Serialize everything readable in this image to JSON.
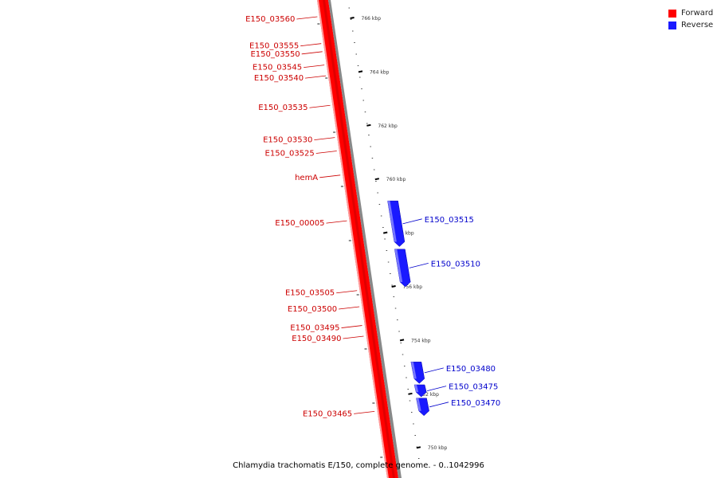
{
  "legend": {
    "forward_label": "Forward",
    "forward_color": "#ff0000",
    "reverse_label": "Reverse",
    "reverse_color": "#1a1aff"
  },
  "caption": "Chlamydia trachomatis E/150, complete genome. - 0..1042996",
  "colors": {
    "forward_label_text": "#cc0000",
    "reverse_label_text": "#0000cc",
    "forward_strand": "#ff0000",
    "forward_strand_dark": "#cc0000",
    "reverse_gene": "#1a1aff"
  },
  "ticks": [
    {
      "label": "766 kbp",
      "kbp": 766
    },
    {
      "label": "764 kbp",
      "kbp": 764
    },
    {
      "label": "762 kbp",
      "kbp": 762
    },
    {
      "label": "760 kbp",
      "kbp": 760
    },
    {
      "label": "758 kbp",
      "kbp": 758
    },
    {
      "label": "756 kbp",
      "kbp": 756
    },
    {
      "label": "754 kbp",
      "kbp": 754
    },
    {
      "label": "752 kbp",
      "kbp": 752
    },
    {
      "label": "750 kbp",
      "kbp": 750
    }
  ],
  "forward_genes": [
    {
      "name": "E150_03560",
      "kbp": 766.0
    },
    {
      "name": "E150_03555",
      "kbp": 765.0
    },
    {
      "name": "E150_03550",
      "kbp": 764.7
    },
    {
      "name": "E150_03545",
      "kbp": 764.2
    },
    {
      "name": "E150_03540",
      "kbp": 763.8
    },
    {
      "name": "E150_03535",
      "kbp": 762.7
    },
    {
      "name": "E150_03530",
      "kbp": 761.5
    },
    {
      "name": "E150_03525",
      "kbp": 761.0
    },
    {
      "name": "hemA",
      "kbp": 760.1
    },
    {
      "name": "E150_00005",
      "kbp": 758.4
    },
    {
      "name": "E150_03505",
      "kbp": 755.8
    },
    {
      "name": "E150_03500",
      "kbp": 755.2
    },
    {
      "name": "E150_03495",
      "kbp": 754.5
    },
    {
      "name": "E150_03490",
      "kbp": 754.1
    },
    {
      "name": "E150_03465",
      "kbp": 751.3
    }
  ],
  "reverse_genes": [
    {
      "name": "E150_03515",
      "start_kbp": 759.2,
      "end_kbp": 757.5
    },
    {
      "name": "E150_03510",
      "start_kbp": 757.4,
      "end_kbp": 756.0
    },
    {
      "name": "E150_03480",
      "start_kbp": 753.2,
      "end_kbp": 752.4
    },
    {
      "name": "E150_03475",
      "start_kbp": 752.35,
      "end_kbp": 751.9
    },
    {
      "name": "E150_03470",
      "start_kbp": 751.85,
      "end_kbp": 751.2
    }
  ]
}
